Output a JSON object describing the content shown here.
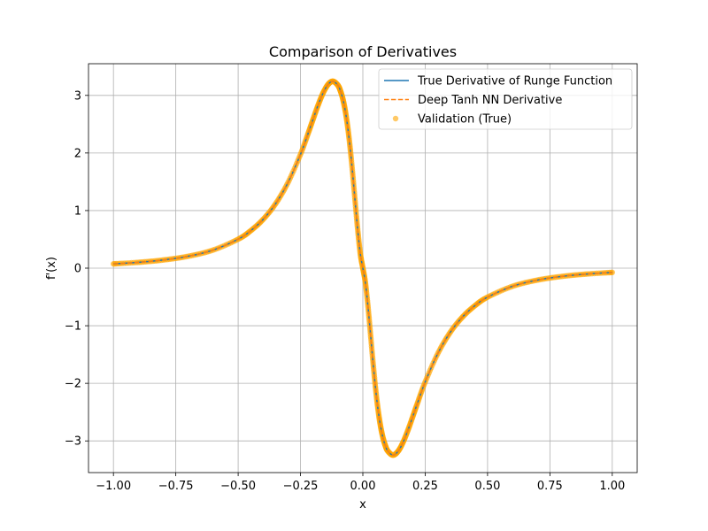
{
  "chart_data": {
    "type": "line",
    "title": "Comparison of Derivatives",
    "xlabel": "x",
    "ylabel": "f'(x)",
    "xlim": [
      -1.1,
      1.1
    ],
    "ylim": [
      -3.55,
      3.55
    ],
    "x_ticks": [
      -1.0,
      -0.75,
      -0.5,
      -0.25,
      0.0,
      0.25,
      0.5,
      0.75,
      1.0
    ],
    "x_tick_labels": [
      "−1.00",
      "−0.75",
      "−0.50",
      "−0.25",
      "0.00",
      "0.25",
      "0.50",
      "0.75",
      "1.00"
    ],
    "y_ticks": [
      -3,
      -2,
      -1,
      0,
      1,
      2,
      3
    ],
    "y_tick_labels": [
      "−3",
      "−2",
      "−1",
      "0",
      "1",
      "2",
      "3"
    ],
    "grid": true,
    "legend_position": "top-right",
    "x": [
      -1.0,
      -0.9,
      -0.8,
      -0.7,
      -0.6,
      -0.5,
      -0.45,
      -0.4,
      -0.35,
      -0.3,
      -0.25,
      -0.22,
      -0.2,
      -0.18,
      -0.16,
      -0.14,
      -0.12,
      -0.1,
      -0.09,
      -0.08,
      -0.07,
      -0.06,
      -0.05,
      -0.04,
      -0.03,
      -0.02,
      -0.01,
      0.0,
      0.01,
      0.02,
      0.03,
      0.04,
      0.05,
      0.06,
      0.07,
      0.08,
      0.09,
      0.1,
      0.12,
      0.14,
      0.16,
      0.18,
      0.2,
      0.22,
      0.25,
      0.3,
      0.35,
      0.4,
      0.45,
      0.5,
      0.6,
      0.7,
      0.8,
      0.9,
      1.0
    ],
    "series": [
      {
        "name": "True Derivative of Runge Function",
        "style": "solid",
        "color": "#1f77b4",
        "values": [
          0.074,
          0.101,
          0.142,
          0.207,
          0.315,
          0.503,
          0.649,
          0.846,
          1.117,
          1.487,
          1.976,
          2.332,
          2.58,
          2.823,
          3.036,
          3.187,
          3.245,
          3.175,
          3.08,
          2.934,
          2.72,
          2.426,
          2.049,
          1.599,
          1.11,
          0.64,
          0.246,
          0.0,
          -0.246,
          -0.64,
          -1.11,
          -1.599,
          -2.049,
          -2.426,
          -2.72,
          -2.934,
          -3.08,
          -3.175,
          -3.245,
          -3.187,
          -3.036,
          -2.823,
          -2.58,
          -2.332,
          -1.976,
          -1.487,
          -1.117,
          -0.846,
          -0.649,
          -0.503,
          -0.315,
          -0.207,
          -0.142,
          -0.101,
          -0.074
        ]
      },
      {
        "name": "Deep Tanh NN Derivative",
        "style": "dashed",
        "color": "#ff7f0e",
        "values": [
          0.074,
          0.101,
          0.142,
          0.207,
          0.315,
          0.503,
          0.649,
          0.846,
          1.117,
          1.487,
          1.976,
          2.332,
          2.58,
          2.823,
          3.036,
          3.187,
          3.245,
          3.175,
          3.08,
          2.934,
          2.72,
          2.426,
          2.049,
          1.599,
          1.11,
          0.64,
          0.246,
          0.0,
          -0.246,
          -0.64,
          -1.11,
          -1.599,
          -2.049,
          -2.426,
          -2.72,
          -2.934,
          -3.08,
          -3.175,
          -3.245,
          -3.187,
          -3.036,
          -2.823,
          -2.58,
          -2.332,
          -1.976,
          -1.487,
          -1.117,
          -0.846,
          -0.649,
          -0.503,
          -0.315,
          -0.207,
          -0.142,
          -0.101,
          -0.074
        ]
      },
      {
        "name": "Validation (True)",
        "style": "scatter",
        "color": "#ffa500",
        "values": [
          0.074,
          0.101,
          0.142,
          0.207,
          0.315,
          0.503,
          0.649,
          0.846,
          1.117,
          1.487,
          1.976,
          2.332,
          2.58,
          2.823,
          3.036,
          3.187,
          3.245,
          3.175,
          3.08,
          2.934,
          2.72,
          2.426,
          2.049,
          1.599,
          1.11,
          0.64,
          0.246,
          0.0,
          -0.246,
          -0.64,
          -1.11,
          -1.599,
          -2.049,
          -2.426,
          -2.72,
          -2.934,
          -3.08,
          -3.175,
          -3.245,
          -3.187,
          -3.036,
          -2.823,
          -2.58,
          -2.332,
          -1.976,
          -1.487,
          -1.117,
          -0.846,
          -0.649,
          -0.503,
          -0.315,
          -0.207,
          -0.142,
          -0.101,
          -0.074
        ]
      }
    ]
  }
}
